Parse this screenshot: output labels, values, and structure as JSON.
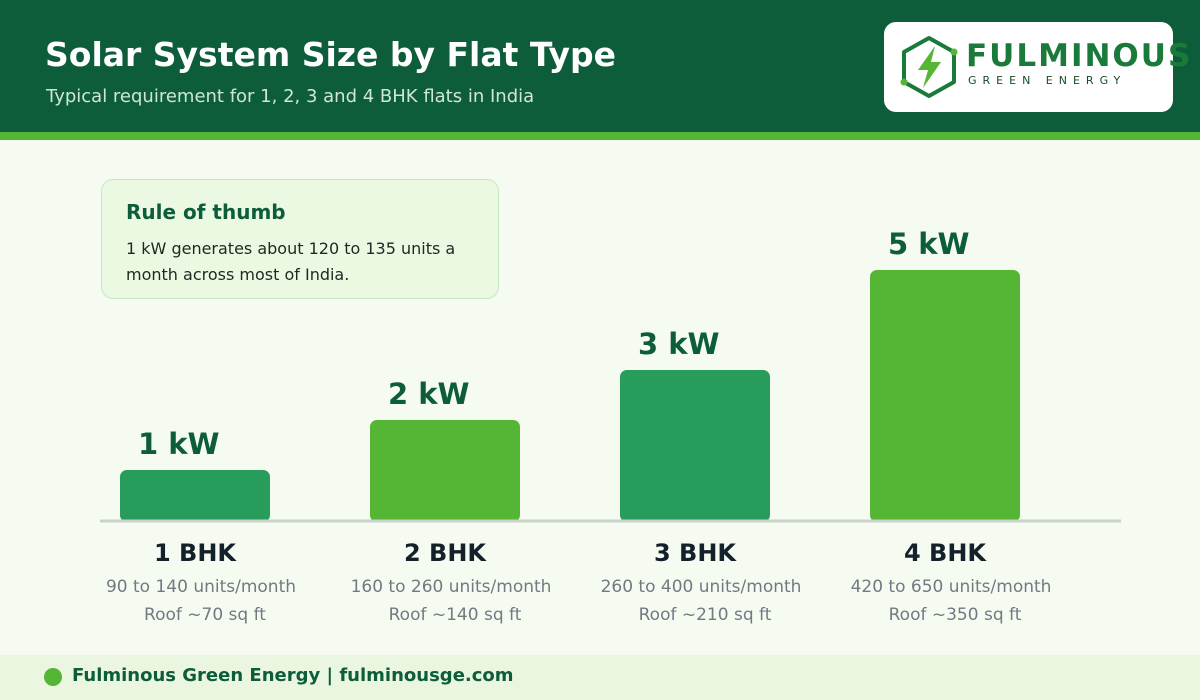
{
  "header": {
    "title": "Solar System Size by Flat Type",
    "subtitle": "Typical requirement for 1, 2, 3 and 4 BHK flats in India"
  },
  "logo": {
    "name": "FULMINOUS",
    "tagline": "GREEN ENERGY",
    "icon": "bolt-hexagon-icon"
  },
  "rule_of_thumb": {
    "title": "Rule of thumb",
    "text": "1 kW generates about 120 to 135 units a month across most of India."
  },
  "chart_data": {
    "type": "bar",
    "categories": [
      "1 BHK",
      "2 BHK",
      "3 BHK",
      "4 BHK"
    ],
    "values": [
      1,
      2,
      3,
      5
    ],
    "value_labels": [
      "1 kW",
      "2 kW",
      "3 kW",
      "5 kW"
    ],
    "units_lines": [
      "90 to 140 units/month",
      "160 to 260 units/month",
      "260 to 400 units/month",
      "420 to 650 units/month"
    ],
    "roof_lines": [
      "Roof ~70 sq ft",
      "Roof ~140 sq ft",
      "Roof ~210 sq ft",
      "Roof ~350 sq ft"
    ],
    "bar_colors": [
      "#289c5a",
      "#55b535",
      "#289c5a",
      "#55b535"
    ],
    "ylim": [
      0,
      5
    ],
    "grid": false
  },
  "footer": {
    "text": "Fulminous Green Energy  |  fulminousge.com"
  },
  "colors": {
    "header_bg": "#0d5c3a",
    "accent_green": "#55b535",
    "dark_green": "#0d5c3a",
    "bar_dark": "#289c5a",
    "page_bg": "#f6fbf2"
  }
}
